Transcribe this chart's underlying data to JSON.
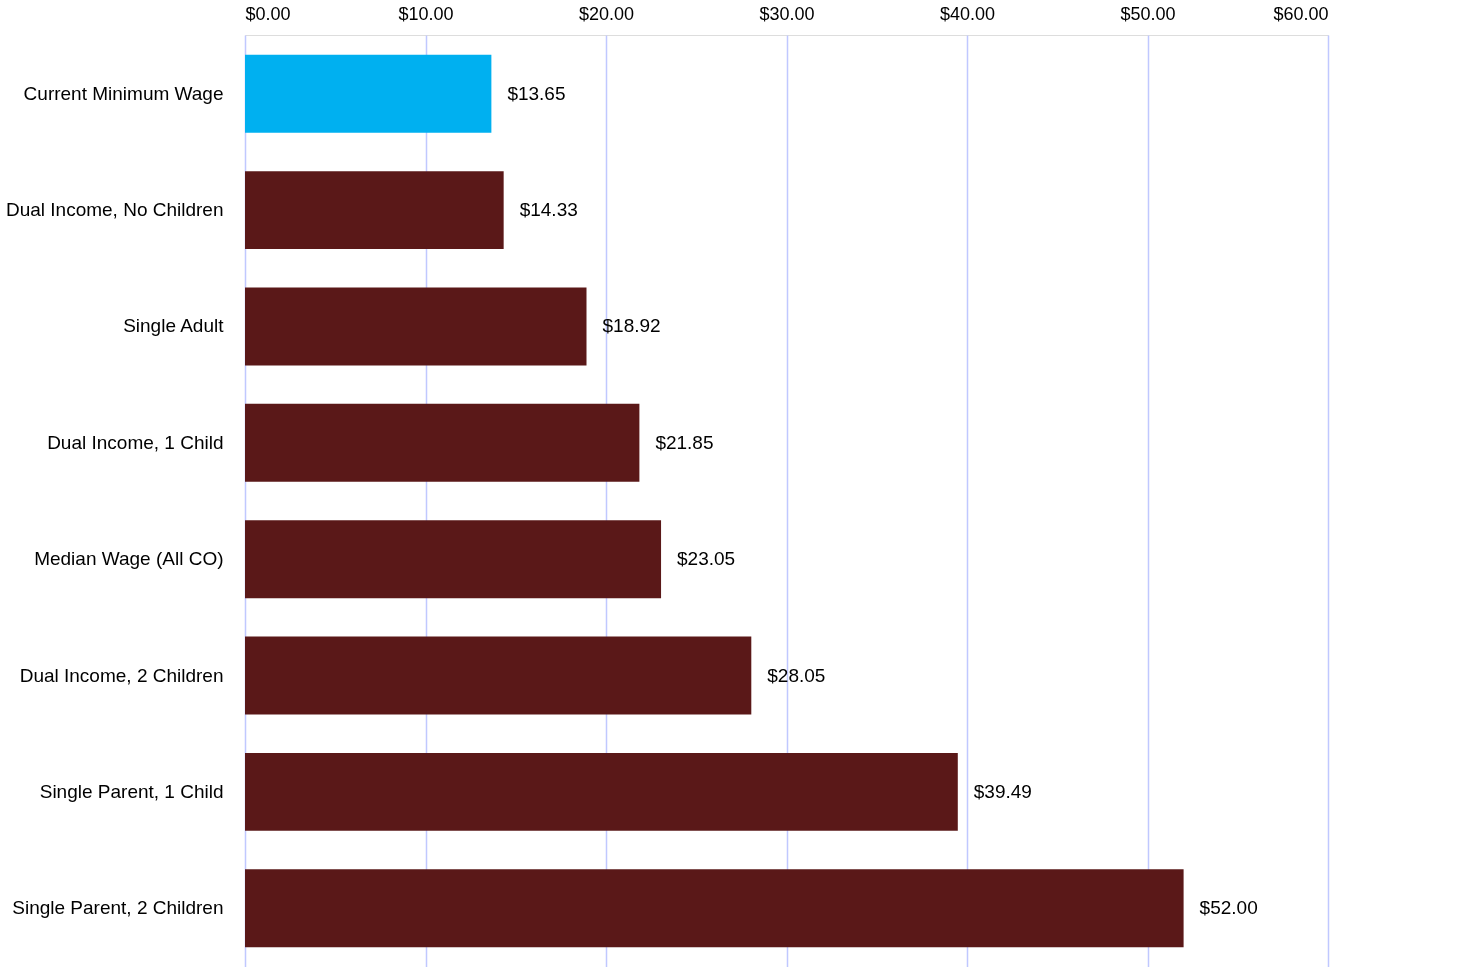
{
  "chart_data": {
    "type": "bar",
    "orientation": "horizontal",
    "categories": [
      "Current Minimum Wage",
      "Dual Income, No Children",
      "Single Adult",
      "Dual Income, 1 Child",
      "Median Wage (All CO)",
      "Dual Income, 2 Children",
      "Single Parent, 1 Child",
      "Single Parent, 2 Children"
    ],
    "values": [
      13.65,
      14.33,
      18.92,
      21.85,
      23.05,
      28.05,
      39.49,
      52.0
    ],
    "colors": [
      "#00b0f0",
      "#5a1818",
      "#5a1818",
      "#5a1818",
      "#5a1818",
      "#5a1818",
      "#5a1818",
      "#5a1818"
    ],
    "value_labels": [
      "$13.65",
      "$14.33",
      "$18.92",
      "$21.85",
      "$23.05",
      "$28.05",
      "$39.49",
      "$52.00"
    ],
    "xlim": [
      0,
      60
    ],
    "xticks": [
      {
        "value": 0,
        "label": "$0.00"
      },
      {
        "value": 10,
        "label": "$10.00"
      },
      {
        "value": 20,
        "label": "$20.00"
      },
      {
        "value": 30,
        "label": "$30.00"
      },
      {
        "value": 40,
        "label": "$40.00"
      },
      {
        "value": 50,
        "label": "$50.00"
      },
      {
        "value": 60,
        "label": "$60.00"
      }
    ],
    "grid": "x"
  }
}
